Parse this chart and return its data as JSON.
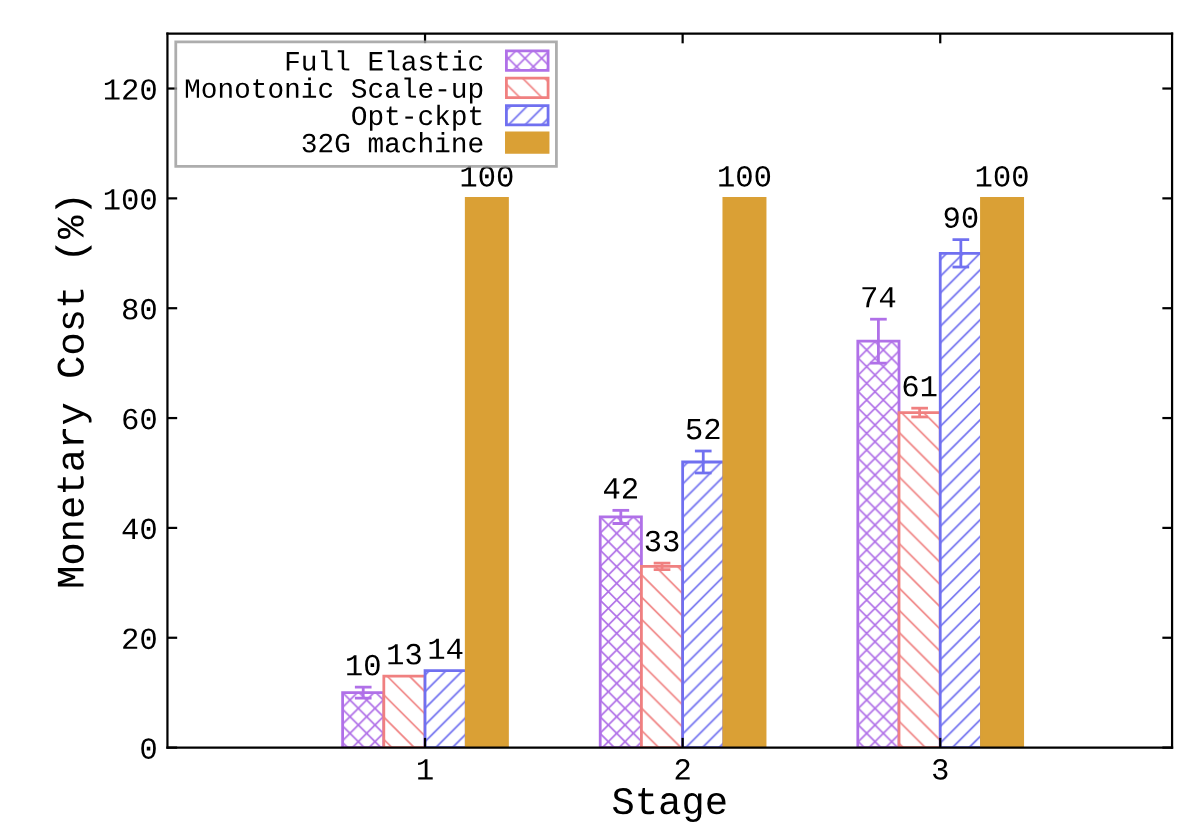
{
  "chart_data": {
    "type": "bar",
    "xlabel": "Stage",
    "ylabel": "Monetary Cost (%)",
    "categories": [
      "1",
      "2",
      "3"
    ],
    "series": [
      {
        "name": "Full Elastic",
        "color": "#b070e8",
        "values": [
          10,
          42,
          74
        ],
        "errors": [
          1,
          1.2,
          4
        ]
      },
      {
        "name": "Monotonic Scale-up",
        "color": "#f08080",
        "values": [
          13,
          33,
          61
        ],
        "errors": [
          null,
          0.6,
          0.8
        ]
      },
      {
        "name": "Opt-ckpt",
        "color": "#7070f0",
        "values": [
          14,
          52,
          90
        ],
        "errors": [
          null,
          2,
          2.5
        ]
      },
      {
        "name": "32G machine",
        "color": "#daa035",
        "values": [
          100,
          100,
          100
        ]
      }
    ],
    "ylim": [
      0,
      130
    ],
    "yticks": [
      0,
      20,
      40,
      60,
      80,
      100,
      120
    ],
    "data_labels": true,
    "legend": "top left",
    "grid": false
  }
}
